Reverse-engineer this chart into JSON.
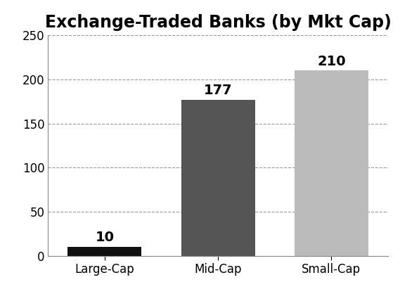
{
  "title": "Exchange-Traded Banks (by Mkt Cap)",
  "categories": [
    "Large-Cap",
    "Mid-Cap",
    "Small-Cap"
  ],
  "values": [
    10,
    177,
    210
  ],
  "bar_colors": [
    "#111111",
    "#555555",
    "#bbbbbb"
  ],
  "bar_labels": [
    "10",
    "177",
    "210"
  ],
  "ylim": [
    0,
    250
  ],
  "yticks": [
    0,
    50,
    100,
    150,
    200,
    250
  ],
  "background_color": "#ffffff",
  "title_fontsize": 17,
  "tick_fontsize": 12,
  "bar_label_fontsize": 14,
  "bar_width": 0.65
}
